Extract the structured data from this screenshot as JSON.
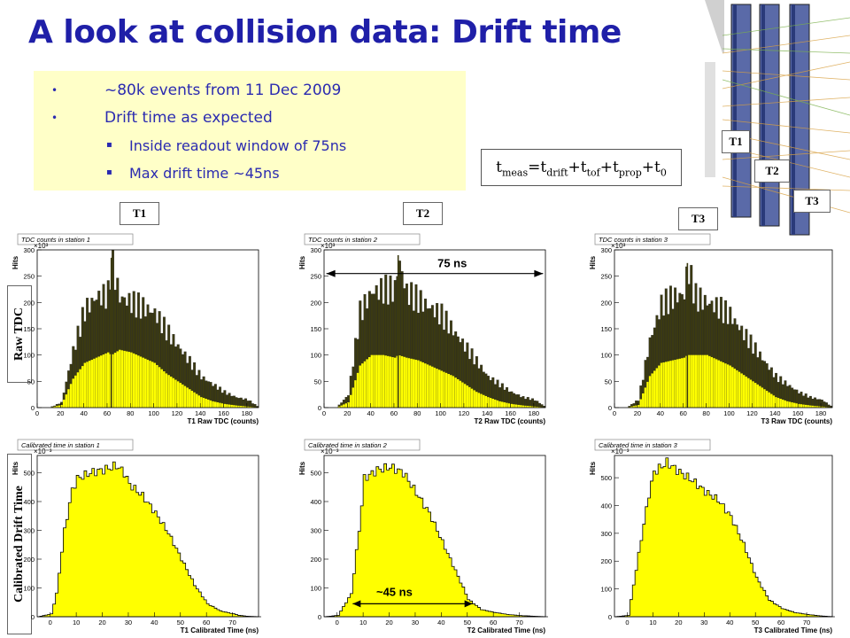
{
  "slide": {
    "title": "A look at collision data: Drift time",
    "bullets": [
      {
        "text": "~80k events from 11 Dec 2009",
        "marker": "•"
      },
      {
        "text": "Drift time as expected",
        "marker": "•"
      },
      {
        "text": "Inside readout window of 75ns",
        "marker": "▪"
      },
      {
        "text": "Max drift time ~45ns",
        "marker": "▪"
      }
    ],
    "formula": {
      "lhs": "t",
      "lhs_sub": "meas",
      "terms": [
        {
          "base": "t",
          "sub": "drift"
        },
        {
          "base": "t",
          "sub": "tof"
        },
        {
          "base": "t",
          "sub": "prop"
        },
        {
          "base": "t",
          "sub": "0"
        }
      ]
    },
    "station_tags": [
      "T1",
      "T2",
      "T3"
    ],
    "row_labels": {
      "raw": "Raw TDC",
      "calibrated": "Calibrated Drift Time"
    },
    "annotations": {
      "window": "75 ns",
      "max_drift": "~45 ns"
    },
    "detector_labels": [
      "T1",
      "T2",
      "T3"
    ]
  },
  "colors": {
    "title": "#1f1fa8",
    "bullet_box": "#ffffc8",
    "bullet_text": "#2a2ab0",
    "fill_yellow": "#ffff00",
    "fill_olive": "#3b3a12"
  },
  "chart_data": [
    {
      "type": "bar",
      "title": "TDC counts in station 1",
      "xlabel": "T1 Raw TDC (counts)",
      "ylabel": "Hits",
      "exponent": "×10³",
      "xlim": [
        0,
        190
      ],
      "ylim": [
        0,
        300
      ],
      "xticks": [
        0,
        20,
        40,
        60,
        80,
        100,
        120,
        140,
        160,
        180
      ],
      "yticks": [
        0,
        50,
        100,
        150,
        200,
        250,
        300
      ],
      "x": [
        10,
        20,
        30,
        40,
        50,
        60,
        63,
        70,
        80,
        90,
        100,
        110,
        120,
        130,
        140,
        150,
        160,
        170,
        180,
        190
      ],
      "series": [
        {
          "values": [
            0,
            10,
            110,
            190,
            215,
            220,
            285,
            215,
            205,
            195,
            185,
            150,
            120,
            90,
            60,
            45,
            30,
            20,
            15,
            0
          ]
        },
        {
          "values": [
            0,
            5,
            55,
            85,
            95,
            105,
            100,
            110,
            105,
            95,
            85,
            65,
            50,
            35,
            20,
            12,
            7,
            4,
            2,
            0
          ]
        }
      ]
    },
    {
      "type": "bar",
      "title": "TDC counts in station 2",
      "xlabel": "T2 Raw TDC (counts)",
      "ylabel": "Hits",
      "exponent": "×10³",
      "xlim": [
        0,
        190
      ],
      "ylim": [
        0,
        300
      ],
      "xticks": [
        0,
        20,
        40,
        60,
        80,
        100,
        120,
        140,
        160,
        180
      ],
      "yticks": [
        0,
        50,
        100,
        150,
        200,
        250,
        300
      ],
      "x": [
        10,
        20,
        30,
        40,
        50,
        60,
        63,
        70,
        80,
        90,
        100,
        110,
        120,
        130,
        140,
        150,
        160,
        170,
        180,
        190
      ],
      "series": [
        {
          "values": [
            0,
            25,
            185,
            225,
            230,
            230,
            290,
            225,
            210,
            195,
            180,
            150,
            120,
            90,
            60,
            45,
            30,
            20,
            15,
            0
          ]
        },
        {
          "values": [
            0,
            10,
            80,
            100,
            100,
            95,
            100,
            95,
            90,
            80,
            70,
            60,
            45,
            30,
            20,
            12,
            7,
            4,
            2,
            0
          ]
        }
      ]
    },
    {
      "type": "bar",
      "title": "TDC counts in station 3",
      "xlabel": "T3 Raw TDC (counts)",
      "ylabel": "Hits",
      "exponent": "×10³",
      "xlim": [
        0,
        190
      ],
      "ylim": [
        0,
        300
      ],
      "xticks": [
        0,
        20,
        40,
        60,
        80,
        100,
        120,
        140,
        160,
        180
      ],
      "yticks": [
        0,
        50,
        100,
        150,
        200,
        250,
        300
      ],
      "x": [
        10,
        20,
        30,
        40,
        50,
        60,
        63,
        70,
        80,
        90,
        100,
        110,
        120,
        130,
        140,
        150,
        160,
        170,
        180,
        190
      ],
      "series": [
        {
          "values": [
            0,
            15,
            130,
            200,
            215,
            220,
            275,
            215,
            205,
            195,
            180,
            150,
            120,
            90,
            60,
            45,
            30,
            20,
            15,
            0
          ]
        },
        {
          "values": [
            0,
            5,
            60,
            85,
            90,
            95,
            100,
            100,
            100,
            90,
            80,
            65,
            50,
            35,
            20,
            12,
            7,
            4,
            2,
            0
          ]
        }
      ]
    },
    {
      "type": "area",
      "title": "Calibrated time in station 1",
      "xlabel": "T1 Calibrated Time (ns)",
      "ylabel": "Hits",
      "exponent": "×10⁻³",
      "xlim": [
        -5,
        80
      ],
      "ylim": [
        0,
        560
      ],
      "xticks": [
        0,
        10,
        20,
        30,
        40,
        50,
        60,
        70
      ],
      "yticks": [
        0,
        100,
        200,
        300,
        400,
        500
      ],
      "x": [
        -5,
        0,
        2,
        5,
        8,
        10,
        15,
        20,
        25,
        28,
        30,
        35,
        40,
        45,
        50,
        55,
        60,
        65,
        70,
        72,
        75,
        80
      ],
      "values": [
        0,
        10,
        80,
        300,
        440,
        480,
        500,
        510,
        525,
        500,
        460,
        420,
        360,
        290,
        200,
        110,
        45,
        20,
        10,
        5,
        2,
        0
      ]
    },
    {
      "type": "area",
      "title": "Calibrated time in station 2",
      "xlabel": "T2 Calibrated Time (ns)",
      "ylabel": "Hits",
      "exponent": "×10⁻³",
      "xlim": [
        -5,
        80
      ],
      "ylim": [
        0,
        560
      ],
      "xticks": [
        0,
        10,
        20,
        30,
        40,
        50,
        60,
        70
      ],
      "yticks": [
        0,
        100,
        200,
        300,
        400,
        500
      ],
      "x": [
        -5,
        0,
        5,
        8,
        10,
        15,
        20,
        25,
        30,
        35,
        40,
        45,
        50,
        55,
        60,
        65,
        70,
        75,
        80
      ],
      "values": [
        0,
        5,
        80,
        300,
        480,
        510,
        520,
        500,
        430,
        360,
        260,
        160,
        60,
        25,
        15,
        8,
        4,
        2,
        0
      ]
    },
    {
      "type": "area",
      "title": "Calibrated time in station 3",
      "xlabel": "T3 Calibrated Time (ns)",
      "ylabel": "Hits",
      "exponent": "×10⁻³",
      "xlim": [
        -5,
        80
      ],
      "ylim": [
        0,
        580
      ],
      "xticks": [
        0,
        10,
        20,
        30,
        40,
        50,
        60,
        70
      ],
      "yticks": [
        0,
        100,
        200,
        300,
        400,
        500
      ],
      "x": [
        -5,
        0,
        5,
        8,
        10,
        15,
        20,
        25,
        30,
        35,
        40,
        45,
        50,
        55,
        60,
        65,
        70,
        75,
        80
      ],
      "values": [
        0,
        5,
        280,
        440,
        520,
        555,
        520,
        490,
        450,
        420,
        360,
        260,
        140,
        60,
        30,
        15,
        8,
        3,
        0
      ]
    }
  ]
}
